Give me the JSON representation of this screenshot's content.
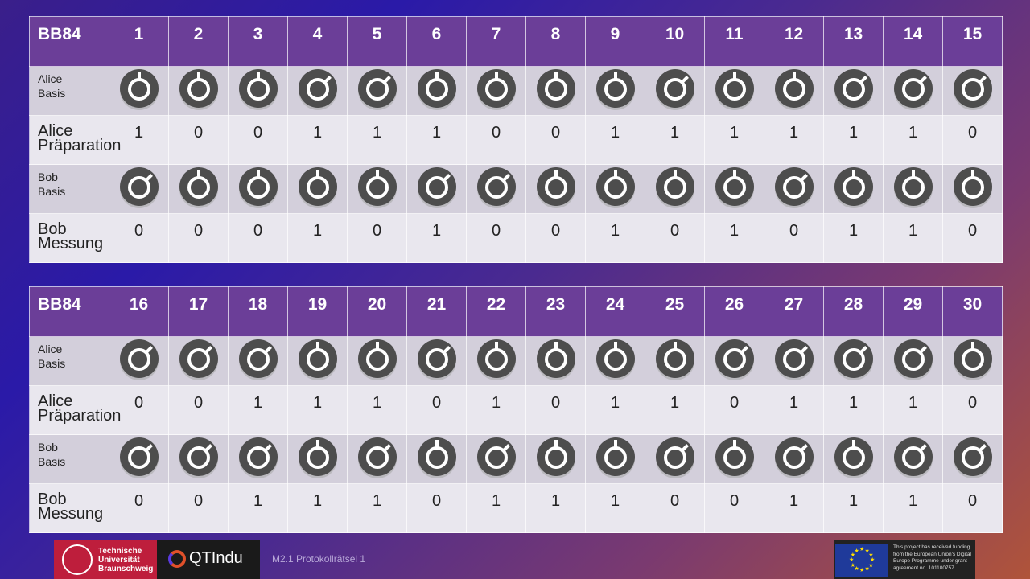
{
  "tables": [
    {
      "title": "BB84",
      "columns": [
        "1",
        "2",
        "3",
        "4",
        "5",
        "6",
        "7",
        "8",
        "9",
        "10",
        "11",
        "12",
        "13",
        "14",
        "15"
      ],
      "rows": [
        {
          "label": "Alice\nBasis",
          "type": "basis",
          "values": [
            "vertical",
            "vertical",
            "vertical",
            "diagonal",
            "diagonal",
            "vertical",
            "vertical",
            "vertical",
            "vertical",
            "diagonal",
            "vertical",
            "vertical",
            "diagonal",
            "diagonal",
            "diagonal"
          ]
        },
        {
          "label": "Alice\nPräparation",
          "type": "value",
          "values": [
            "1",
            "0",
            "0",
            "1",
            "1",
            "1",
            "0",
            "0",
            "1",
            "1",
            "1",
            "1",
            "1",
            "1",
            "0"
          ]
        },
        {
          "label": "Bob\nBasis",
          "type": "basis",
          "values": [
            "diagonal",
            "vertical",
            "vertical",
            "vertical",
            "vertical",
            "diagonal",
            "diagonal",
            "vertical",
            "vertical",
            "vertical",
            "vertical",
            "diagonal",
            "vertical",
            "vertical",
            "vertical"
          ]
        },
        {
          "label": "Bob\nMessung",
          "type": "value",
          "values": [
            "0",
            "0",
            "0",
            "1",
            "0",
            "1",
            "0",
            "0",
            "1",
            "0",
            "1",
            "0",
            "1",
            "1",
            "0"
          ]
        }
      ]
    },
    {
      "title": "BB84",
      "columns": [
        "16",
        "17",
        "18",
        "19",
        "20",
        "21",
        "22",
        "23",
        "24",
        "25",
        "26",
        "27",
        "28",
        "29",
        "30"
      ],
      "rows": [
        {
          "label": "Alice\nBasis",
          "type": "basis",
          "values": [
            "diagonal",
            "diagonal",
            "diagonal",
            "vertical",
            "vertical",
            "diagonal",
            "vertical",
            "vertical",
            "vertical",
            "vertical",
            "diagonal",
            "diagonal",
            "diagonal",
            "diagonal",
            "vertical"
          ]
        },
        {
          "label": "Alice\nPräparation",
          "type": "value",
          "values": [
            "0",
            "0",
            "1",
            "1",
            "1",
            "0",
            "1",
            "0",
            "1",
            "1",
            "0",
            "1",
            "1",
            "1",
            "0"
          ]
        },
        {
          "label": "Bob\nBasis",
          "type": "basis",
          "values": [
            "diagonal",
            "diagonal",
            "diagonal",
            "vertical",
            "diagonal",
            "vertical",
            "diagonal",
            "vertical",
            "vertical",
            "diagonal",
            "vertical",
            "diagonal",
            "vertical",
            "diagonal",
            "diagonal"
          ]
        },
        {
          "label": "Bob\nMessung",
          "type": "value",
          "values": [
            "0",
            "0",
            "1",
            "1",
            "1",
            "0",
            "1",
            "1",
            "1",
            "0",
            "0",
            "1",
            "1",
            "1",
            "0"
          ]
        }
      ]
    }
  ],
  "footer": {
    "tu_logo": "Technische Universität Braunschweig",
    "qt_logo": "QTIndu",
    "module": "M2.1 Protokollrätsel 1",
    "eu_text": "This project has received funding from the European Union's Digital Europe Programme under grant agreement no. 101100757."
  },
  "colors": {
    "header": "#6b3e98",
    "basis_row": "#d3cfdb",
    "value_row": "#e9e7ee",
    "icon": "#4d4d4d"
  }
}
